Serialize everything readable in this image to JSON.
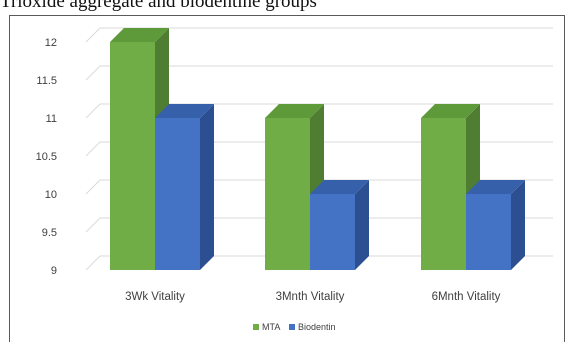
{
  "caption": "Trioxide aggregate and biodentine groups",
  "chart_data": {
    "type": "bar",
    "categories": [
      "3Wk Vitality",
      "3Mnth Vitality",
      "6Mnth Vitality"
    ],
    "series": [
      {
        "name": "MTA",
        "values": [
          12,
          11,
          11
        ]
      },
      {
        "name": "Biodentin",
        "values": [
          11,
          10,
          10
        ]
      }
    ],
    "y_ticks": [
      "9",
      "9.5",
      "10",
      "10.5",
      "11",
      "11.5",
      "12"
    ],
    "ylim": [
      9,
      12
    ],
    "grid": true,
    "legend": "bottom",
    "three_d": true,
    "colors": {
      "MTA": {
        "front": "#70ad47",
        "side": "#4f7d31",
        "top": "#5e9a3a"
      },
      "Biodentin": {
        "front": "#4472c4",
        "side": "#2c4f92",
        "top": "#3760aa"
      },
      "grid": "#d9d9d9",
      "text": "#404040"
    }
  }
}
